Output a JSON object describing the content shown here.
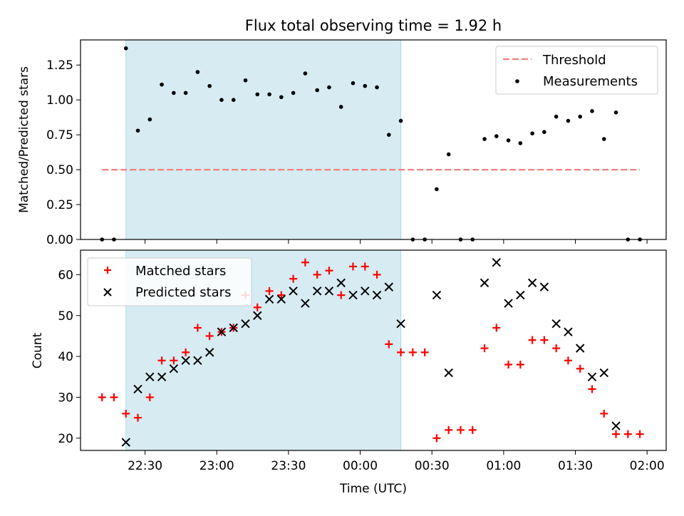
{
  "chart_data": [
    {
      "type": "scatter",
      "title": "Flux total observing time = 1.92 h",
      "xlabel": "",
      "ylabel": "Matched/Predicted stars",
      "ylim": [
        0,
        1.43
      ],
      "yticks": [
        "0.00",
        "0.25",
        "0.50",
        "0.75",
        "1.00",
        "1.25"
      ],
      "ytick_values": [
        0,
        0.25,
        0.5,
        0.75,
        1.0,
        1.25
      ],
      "legend_position": "top-right",
      "observing_window": [
        "22:22",
        "00:17"
      ],
      "threshold": {
        "name": "Threshold",
        "value": 0.5,
        "x_start": "22:12",
        "x_end": "01:57",
        "color": "#f08080"
      },
      "series": [
        {
          "name": "Measurements",
          "color": "#000000",
          "x": [
            "22:12",
            "22:17",
            "22:22",
            "22:27",
            "22:32",
            "22:37",
            "22:42",
            "22:47",
            "22:52",
            "22:57",
            "23:02",
            "23:07",
            "23:12",
            "23:17",
            "23:22",
            "23:27",
            "23:32",
            "23:37",
            "23:42",
            "23:47",
            "23:52",
            "23:57",
            "00:02",
            "00:07",
            "00:12",
            "00:17",
            "00:22",
            "00:27",
            "00:32",
            "00:37",
            "00:42",
            "00:47",
            "00:52",
            "00:57",
            "01:02",
            "01:07",
            "01:12",
            "01:17",
            "01:22",
            "01:27",
            "01:32",
            "01:37",
            "01:42",
            "01:47",
            "01:52",
            "01:57"
          ],
          "y": [
            0,
            0,
            1.37,
            0.78,
            0.86,
            1.11,
            1.05,
            1.05,
            1.2,
            1.1,
            1.0,
            1.0,
            1.14,
            1.04,
            1.04,
            1.02,
            1.05,
            1.19,
            1.07,
            1.09,
            0.95,
            1.12,
            1.1,
            1.09,
            0.75,
            0.85,
            0,
            0,
            0.36,
            0.61,
            0,
            0,
            0.72,
            0.74,
            0.71,
            0.69,
            0.76,
            0.77,
            0.88,
            0.85,
            0.88,
            0.92,
            0.72,
            0.91,
            0,
            0
          ]
        }
      ]
    },
    {
      "type": "scatter",
      "title": "",
      "xlabel": "Time (UTC)",
      "ylabel": "Count",
      "ylim": [
        17,
        66
      ],
      "yticks": [
        "20",
        "30",
        "40",
        "50",
        "60"
      ],
      "ytick_values": [
        20,
        30,
        40,
        50,
        60
      ],
      "xlim": [
        "22:03",
        "02:08"
      ],
      "xticks": [
        "22:30",
        "23:00",
        "23:30",
        "00:00",
        "00:30",
        "01:00",
        "01:30",
        "02:00"
      ],
      "legend_position": "top-left",
      "observing_window": [
        "22:22",
        "00:17"
      ],
      "series": [
        {
          "name": "Matched stars",
          "marker": "plus",
          "color": "#ff0000",
          "x": [
            "22:12",
            "22:17",
            "22:22",
            "22:27",
            "22:32",
            "22:37",
            "22:42",
            "22:47",
            "22:52",
            "22:57",
            "23:02",
            "23:07",
            "23:12",
            "23:17",
            "23:22",
            "23:27",
            "23:32",
            "23:37",
            "23:42",
            "23:47",
            "23:52",
            "23:57",
            "00:02",
            "00:07",
            "00:12",
            "00:17",
            "00:22",
            "00:27",
            "00:32",
            "00:37",
            "00:42",
            "00:47",
            "00:52",
            "00:57",
            "01:02",
            "01:07",
            "01:12",
            "01:17",
            "01:22",
            "01:27",
            "01:32",
            "01:37",
            "01:42",
            "01:47",
            "01:52",
            "01:57"
          ],
          "y": [
            30,
            30,
            26,
            25,
            30,
            39,
            39,
            41,
            47,
            45,
            46,
            47,
            55,
            52,
            56,
            55,
            59,
            63,
            60,
            61,
            55,
            62,
            62,
            60,
            43,
            41,
            41,
            41,
            20,
            22,
            22,
            22,
            42,
            47,
            38,
            38,
            44,
            44,
            42,
            39,
            37,
            32,
            26,
            21,
            21,
            21
          ]
        },
        {
          "name": "Predicted stars",
          "marker": "x",
          "color": "#000000",
          "x": [
            "22:22",
            "22:27",
            "22:32",
            "22:37",
            "22:42",
            "22:47",
            "22:52",
            "22:57",
            "23:02",
            "23:07",
            "23:12",
            "23:17",
            "23:22",
            "23:27",
            "23:32",
            "23:37",
            "23:42",
            "23:47",
            "23:52",
            "23:57",
            "00:02",
            "00:07",
            "00:12",
            "00:17",
            "00:32",
            "00:37",
            "00:52",
            "00:57",
            "01:02",
            "01:07",
            "01:12",
            "01:17",
            "01:22",
            "01:27",
            "01:32",
            "01:37",
            "01:42",
            "01:47"
          ],
          "y": [
            19,
            32,
            35,
            35,
            37,
            39,
            39,
            41,
            46,
            47,
            48,
            50,
            54,
            54,
            56,
            53,
            56,
            56,
            58,
            55,
            56,
            55,
            57,
            48,
            55,
            36,
            58,
            63,
            53,
            55,
            58,
            57,
            48,
            46,
            42,
            35,
            36,
            23
          ]
        }
      ]
    }
  ]
}
